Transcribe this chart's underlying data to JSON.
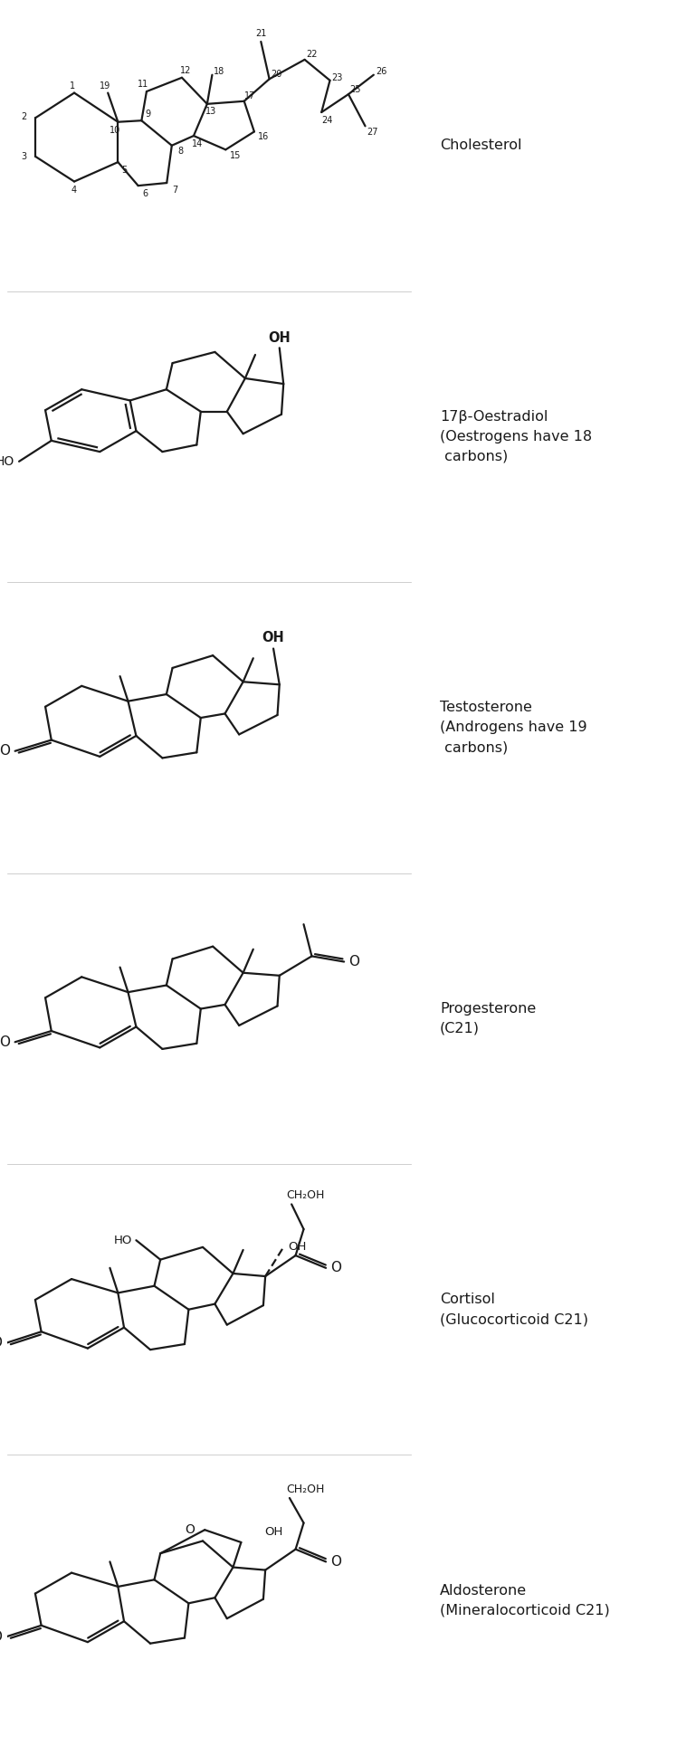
{
  "bg": "#dce6f0",
  "white": "#ffffff",
  "lc": "#1a1a1a",
  "panel_labels": [
    "Cholesterol",
    "17β-Oestradiol\n(Oestrogens have 18\n carbons)",
    "Testosterone\n(Androgens have 19\n carbons)",
    "Progesterone\n(C21)",
    "Cortisol\n(Glucocorticoid C21)",
    "Aldosterone\n(Mineralocorticoid C21)"
  ],
  "fig_width": 7.69,
  "fig_height": 19.29,
  "lw": 1.6,
  "lfs": 11.5,
  "nfs": 7.0
}
